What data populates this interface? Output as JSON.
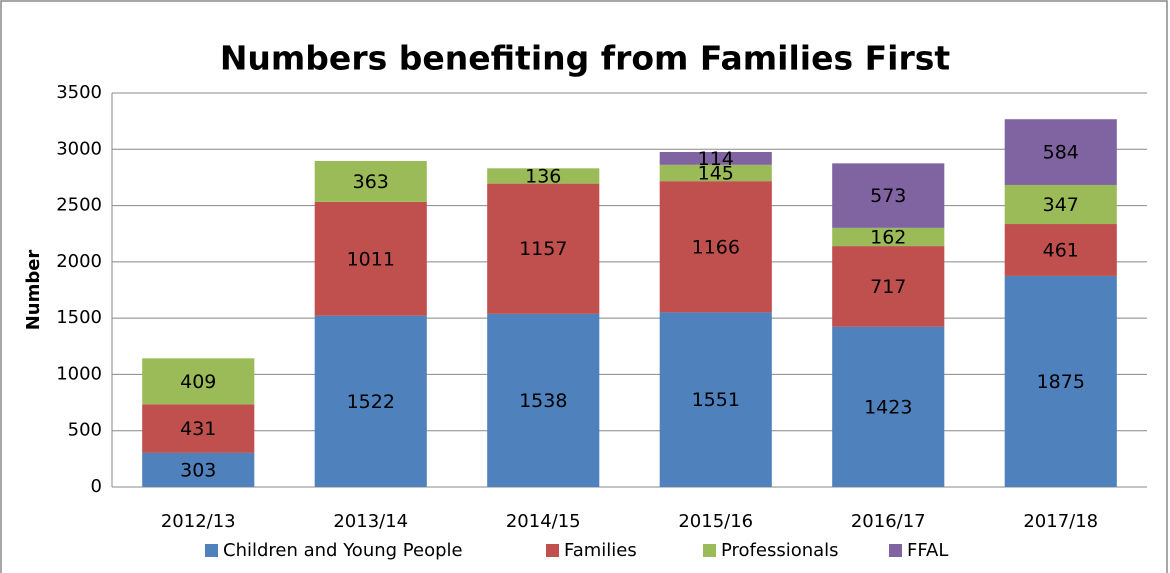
{
  "chart_data": {
    "type": "stacked_bar",
    "title": "Numbers benefiting from Families First",
    "y_label": "Number",
    "categories": [
      "2012/13",
      "2013/14",
      "2014/15",
      "2015/16",
      "2016/17",
      "2017/18"
    ],
    "series": [
      {
        "name": "Children and Young People",
        "color": "#4f81bd",
        "values": [
          303,
          1522,
          1538,
          1551,
          1423,
          1875
        ]
      },
      {
        "name": "Families",
        "color": "#c0504d",
        "values": [
          431,
          1011,
          1157,
          1166,
          717,
          461
        ]
      },
      {
        "name": "Professionals",
        "color": "#9bbb59",
        "values": [
          409,
          363,
          136,
          145,
          162,
          347
        ]
      },
      {
        "name": "FFAL",
        "color": "#8064a2",
        "values": [
          null,
          null,
          null,
          114,
          573,
          584
        ]
      }
    ],
    "ylim": [
      0,
      3500
    ],
    "yticks": [
      0,
      500,
      1000,
      1500,
      2000,
      2500,
      3000,
      3500
    ],
    "grid": true,
    "legend": "bottom"
  }
}
